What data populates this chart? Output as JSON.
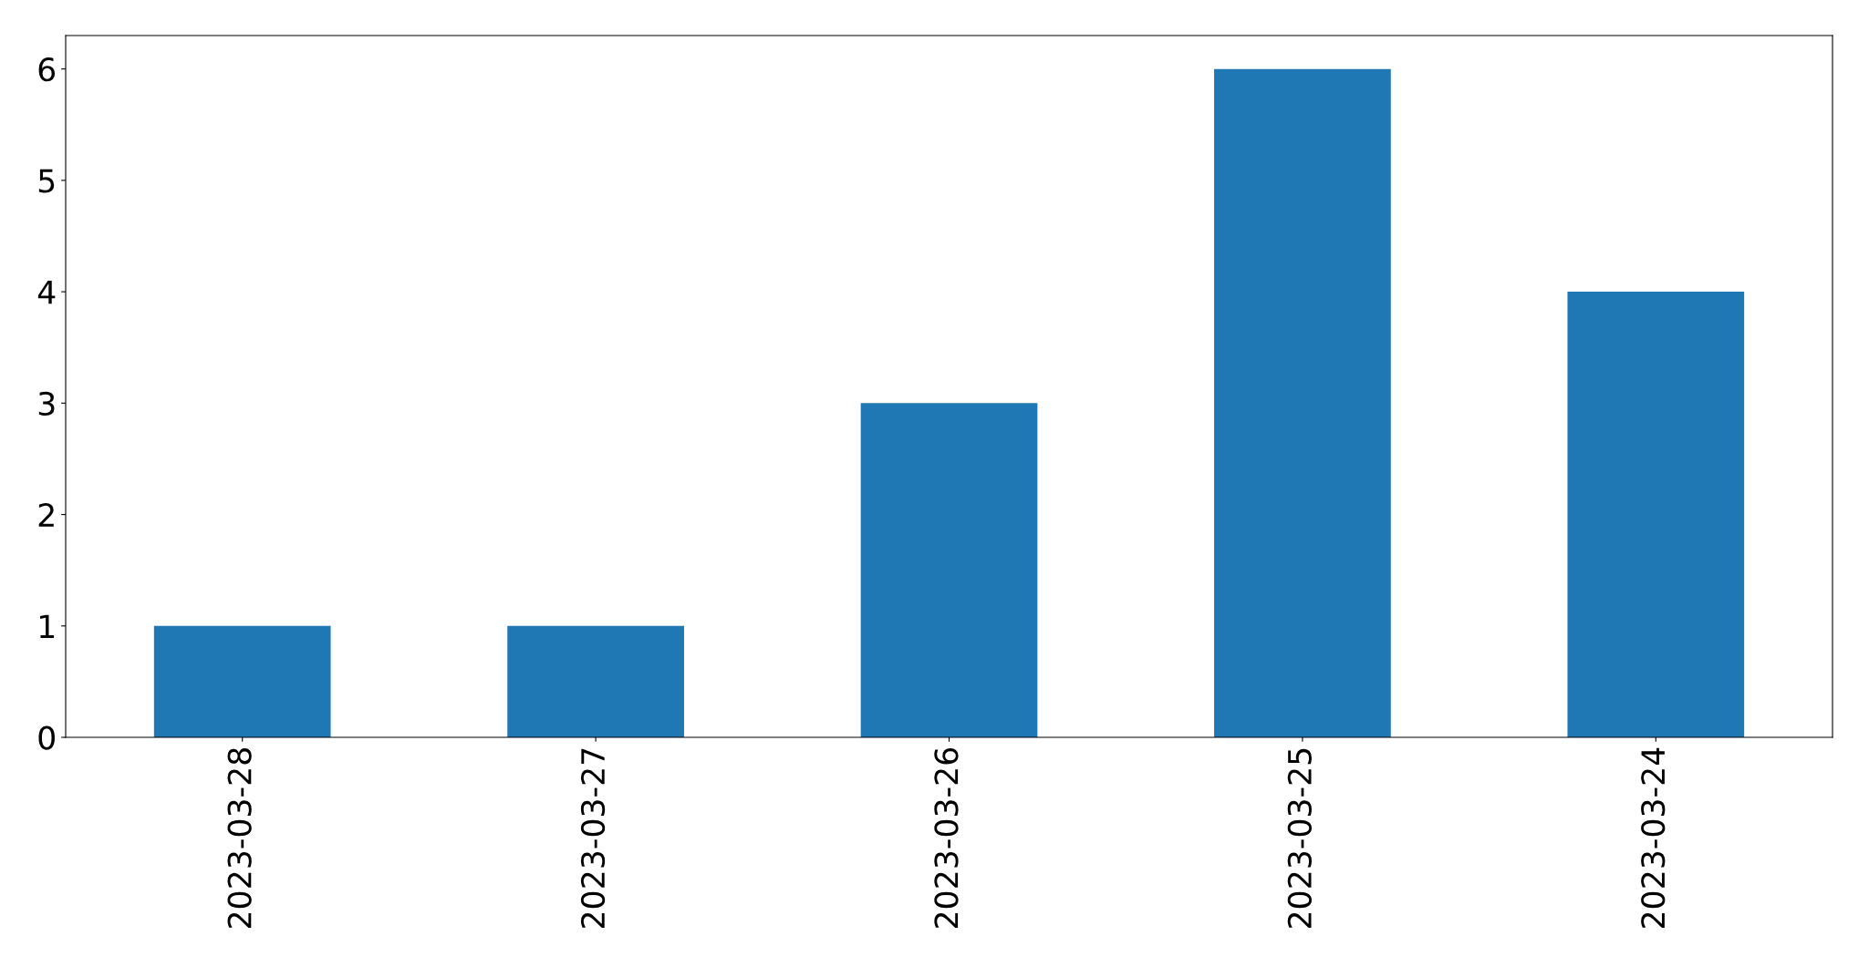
{
  "chart_data": {
    "type": "bar",
    "categories": [
      "2023-03-28",
      "2023-03-27",
      "2023-03-26",
      "2023-03-25",
      "2023-03-24"
    ],
    "values": [
      1,
      1,
      3,
      6,
      4
    ],
    "color": "#1f77b4",
    "ylim": [
      0,
      6.3
    ],
    "yticks": [
      0,
      1,
      2,
      3,
      4,
      5,
      6
    ],
    "grid": false,
    "legend": false
  }
}
